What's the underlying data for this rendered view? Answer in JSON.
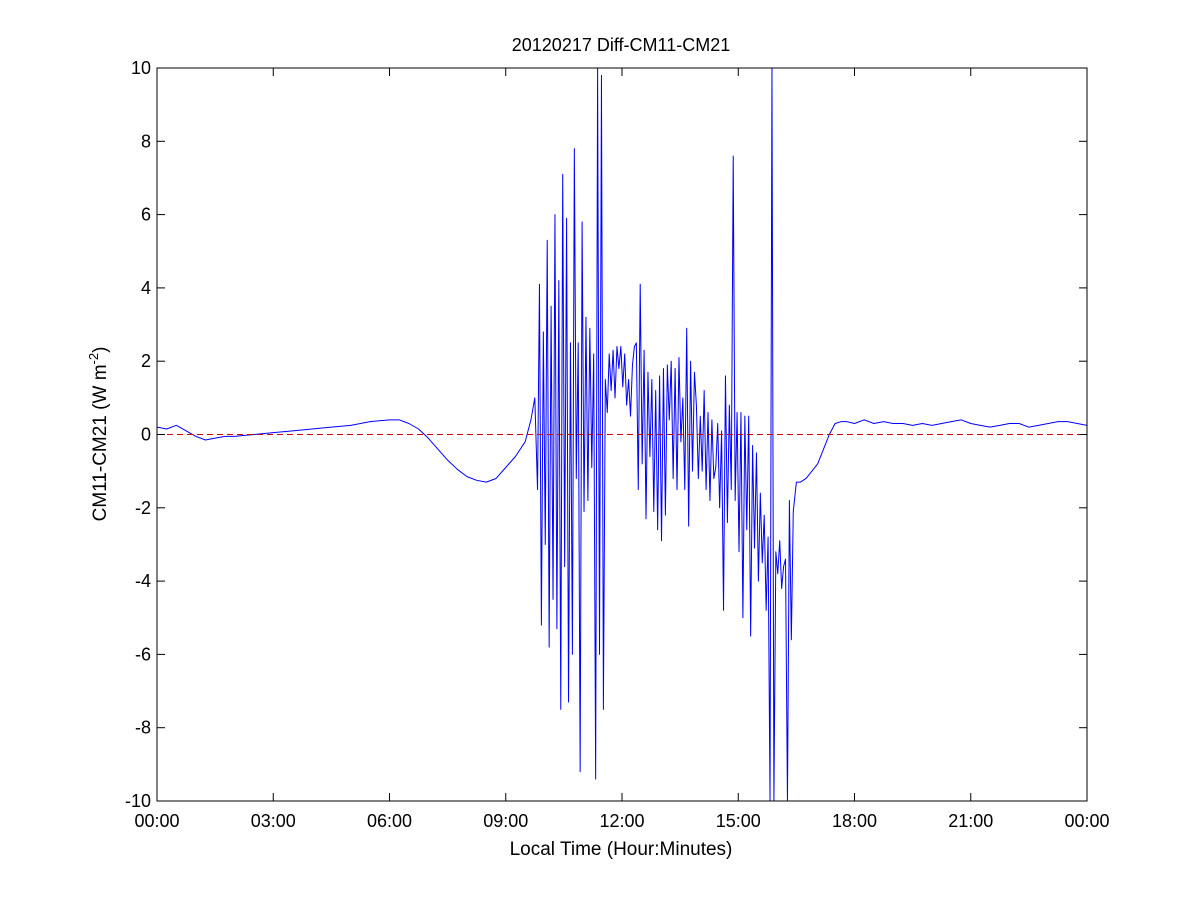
{
  "chart_data": {
    "type": "line",
    "title": "20120217 Diff-CM11-CM21",
    "xlabel": "Local Time (Hour:Minutes)",
    "ylabel": {
      "prefix": "CM11-CM21 (W m",
      "superscript": "-2",
      "suffix": ")"
    },
    "x_unit": "hours",
    "xlim": [
      0,
      24
    ],
    "ylim": [
      -10,
      10
    ],
    "x_ticks": [
      0,
      3,
      6,
      9,
      12,
      15,
      18,
      21,
      24
    ],
    "x_tick_labels": [
      "00:00",
      "03:00",
      "06:00",
      "09:00",
      "12:00",
      "15:00",
      "18:00",
      "21:00",
      "00:00"
    ],
    "y_ticks": [
      -10,
      -8,
      -6,
      -4,
      -2,
      0,
      2,
      4,
      6,
      8,
      10
    ],
    "y_tick_labels": [
      "-10",
      "-8",
      "-6",
      "-4",
      "-2",
      "0",
      "2",
      "4",
      "6",
      "8",
      "10"
    ],
    "grid": false,
    "reference_line": {
      "y": 0,
      "color": "#cc0000",
      "style": "dashed"
    },
    "series": [
      {
        "color": "#0000ff",
        "x": [
          0,
          0.25,
          0.5,
          0.75,
          1.0,
          1.25,
          1.5,
          1.75,
          2.0,
          2.5,
          3.0,
          3.5,
          4.0,
          4.5,
          5.0,
          5.5,
          6.0,
          6.25,
          6.5,
          6.75,
          7.0,
          7.25,
          7.5,
          7.75,
          8.0,
          8.25,
          8.5,
          8.75,
          9.0,
          9.25,
          9.5,
          9.65,
          9.75,
          9.82,
          9.87,
          9.92,
          9.97,
          10.02,
          10.07,
          10.12,
          10.17,
          10.22,
          10.27,
          10.32,
          10.37,
          10.42,
          10.47,
          10.52,
          10.57,
          10.62,
          10.67,
          10.72,
          10.77,
          10.82,
          10.87,
          10.92,
          10.97,
          11.02,
          11.07,
          11.12,
          11.17,
          11.22,
          11.27,
          11.32,
          11.37,
          11.42,
          11.47,
          11.52,
          11.57,
          11.62,
          11.67,
          11.72,
          11.77,
          11.82,
          11.87,
          11.92,
          11.97,
          12.02,
          12.07,
          12.12,
          12.17,
          12.22,
          12.27,
          12.32,
          12.37,
          12.42,
          12.47,
          12.52,
          12.57,
          12.62,
          12.67,
          12.72,
          12.77,
          12.82,
          12.87,
          12.92,
          12.97,
          13.02,
          13.07,
          13.12,
          13.17,
          13.22,
          13.27,
          13.32,
          13.37,
          13.42,
          13.47,
          13.52,
          13.57,
          13.62,
          13.67,
          13.72,
          13.77,
          13.82,
          13.87,
          13.92,
          13.97,
          14.02,
          14.07,
          14.12,
          14.17,
          14.22,
          14.27,
          14.32,
          14.37,
          14.42,
          14.47,
          14.52,
          14.57,
          14.62,
          14.67,
          14.72,
          14.77,
          14.82,
          14.87,
          14.92,
          14.97,
          15.02,
          15.07,
          15.12,
          15.17,
          15.22,
          15.27,
          15.32,
          15.37,
          15.42,
          15.47,
          15.52,
          15.57,
          15.62,
          15.67,
          15.72,
          15.77,
          15.82,
          15.87,
          15.92,
          15.97,
          16.02,
          16.07,
          16.12,
          16.17,
          16.22,
          16.27,
          16.32,
          16.37,
          16.42,
          16.5,
          16.6,
          16.75,
          16.9,
          17.05,
          17.2,
          17.35,
          17.5,
          17.65,
          17.8,
          18.0,
          18.25,
          18.5,
          18.75,
          19.0,
          19.25,
          19.5,
          19.75,
          20.0,
          20.25,
          20.5,
          20.75,
          21.0,
          21.25,
          21.5,
          21.75,
          22.0,
          22.25,
          22.5,
          22.75,
          23.0,
          23.25,
          23.5,
          23.75,
          24.0
        ],
        "y": [
          0.2,
          0.15,
          0.25,
          0.1,
          -0.05,
          -0.15,
          -0.1,
          -0.05,
          -0.05,
          0.0,
          0.05,
          0.1,
          0.15,
          0.2,
          0.25,
          0.35,
          0.4,
          0.4,
          0.3,
          0.15,
          -0.1,
          -0.4,
          -0.7,
          -0.95,
          -1.15,
          -1.25,
          -1.3,
          -1.2,
          -0.9,
          -0.6,
          -0.2,
          0.4,
          1.0,
          -1.5,
          4.1,
          -5.2,
          2.8,
          -3.0,
          5.3,
          -5.8,
          3.5,
          -4.5,
          6.0,
          -5.3,
          4.2,
          -7.5,
          7.1,
          -3.6,
          5.9,
          -7.3,
          2.5,
          -6.0,
          7.8,
          -1.2,
          2.5,
          -9.2,
          5.8,
          -2.1,
          3.2,
          -1.8,
          2.9,
          -0.9,
          2.2,
          -9.4,
          10.0,
          -6.0,
          9.8,
          -7.5,
          1.5,
          0.6,
          2.2,
          1.2,
          2.3,
          1.0,
          2.4,
          1.8,
          2.4,
          1.3,
          2.2,
          0.8,
          1.5,
          0.5,
          1.9,
          2.4,
          2.5,
          -1.5,
          4.1,
          -0.8,
          2.3,
          -2.3,
          1.7,
          -0.6,
          1.5,
          -2.1,
          1.2,
          -2.6,
          1.6,
          -2.9,
          1.8,
          -2.2,
          1.9,
          0.4,
          2.0,
          -1.2,
          1.8,
          -1.5,
          2.1,
          -0.2,
          1.0,
          -1.5,
          2.9,
          -2.5,
          2.0,
          -1.0,
          1.7,
          0.8,
          -1.2,
          0.5,
          -1.0,
          1.2,
          -1.5,
          0.6,
          -1.8,
          0.4,
          -1.2,
          -0.9,
          0.3,
          -2.0,
          0.1,
          -4.8,
          1.6,
          -2.4,
          0.8,
          -1.5,
          7.6,
          -1.8,
          0.6,
          -3.2,
          0.6,
          -5.0,
          0.5,
          -2.6,
          0.5,
          -5.5,
          -0.3,
          -3.1,
          -0.5,
          -4.0,
          -1.6,
          -3.5,
          -2.2,
          -4.8,
          -2.8,
          -10.0,
          10.0,
          -10.0,
          -3.2,
          -3.8,
          -2.9,
          -4.2,
          -3.6,
          -3.4,
          -10.0,
          -1.8,
          -5.6,
          -2.1,
          -1.3,
          -1.3,
          -1.2,
          -1.0,
          -0.8,
          -0.4,
          0.0,
          0.3,
          0.35,
          0.35,
          0.3,
          0.4,
          0.3,
          0.35,
          0.3,
          0.3,
          0.25,
          0.3,
          0.25,
          0.3,
          0.35,
          0.4,
          0.3,
          0.25,
          0.2,
          0.25,
          0.3,
          0.3,
          0.2,
          0.25,
          0.3,
          0.35,
          0.35,
          0.3,
          0.25
        ]
      }
    ]
  }
}
